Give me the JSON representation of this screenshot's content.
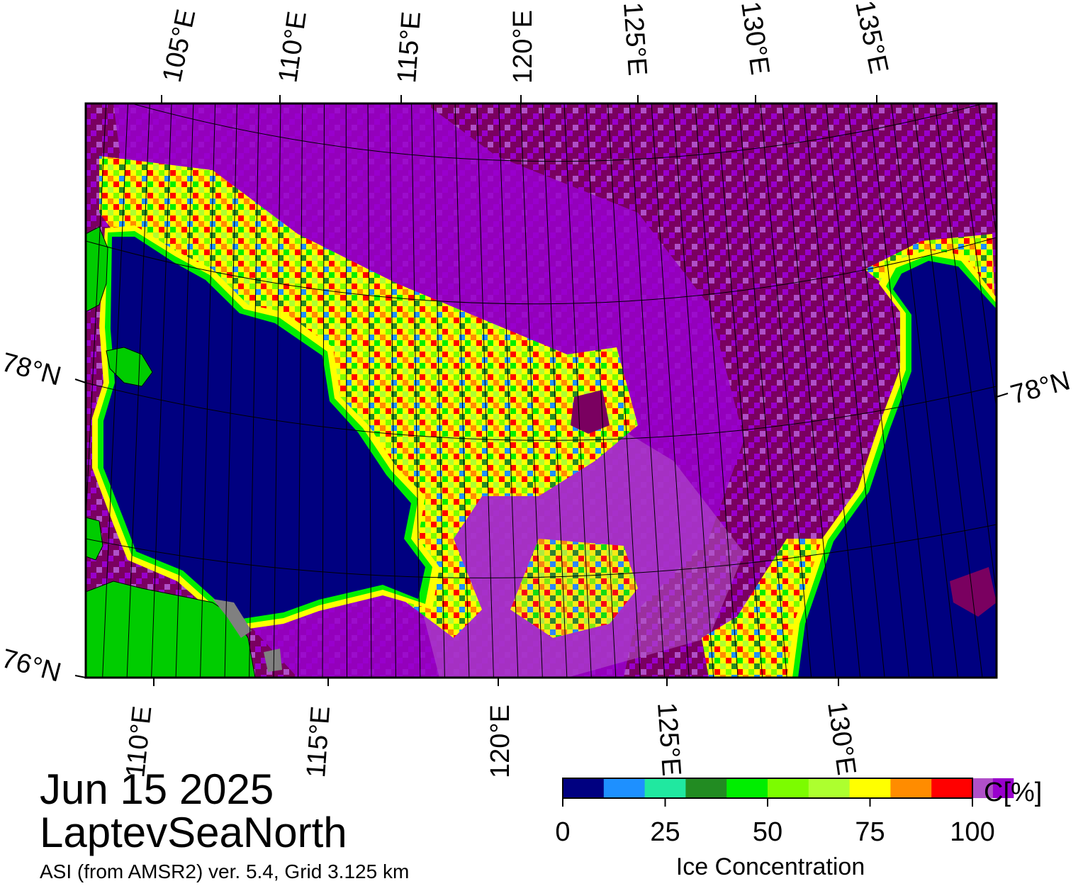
{
  "map": {
    "region": "LaptevSeaNorth",
    "date": "Jun 15 2025",
    "product": "ASI (from AMSR2) ver. 5.4,  Grid 3.125 km",
    "top_lon_labels": [
      "105°E",
      "110°E",
      "115°E",
      "120°E",
      "125°E",
      "130°E",
      "135°E"
    ],
    "bottom_lon_labels": [
      "110°E",
      "115°E",
      "120°E",
      "125°E",
      "130°E"
    ],
    "left_lat_labels": [
      "78°N",
      "76°N"
    ],
    "right_lat_labels": [
      "78°N"
    ],
    "colors": {
      "open_water": "#000080",
      "land": "#00cc00",
      "coast_gray": "#808080",
      "high_ice": "#7a0060",
      "ice_95": "#9900cc",
      "ice_90": "#b050c8"
    }
  },
  "colorbar": {
    "title": "Ice Concentration",
    "unit": "C[%]",
    "ticks": [
      "0",
      "25",
      "50",
      "75",
      "100"
    ],
    "colors": [
      "#000080",
      "#1e90ff",
      "#20e8a0",
      "#228b22",
      "#00ee00",
      "#7cfc00",
      "#adff2f",
      "#ffff00",
      "#ff8c00",
      "#ff0000",
      "#b050c8",
      "#9900cc"
    ]
  }
}
